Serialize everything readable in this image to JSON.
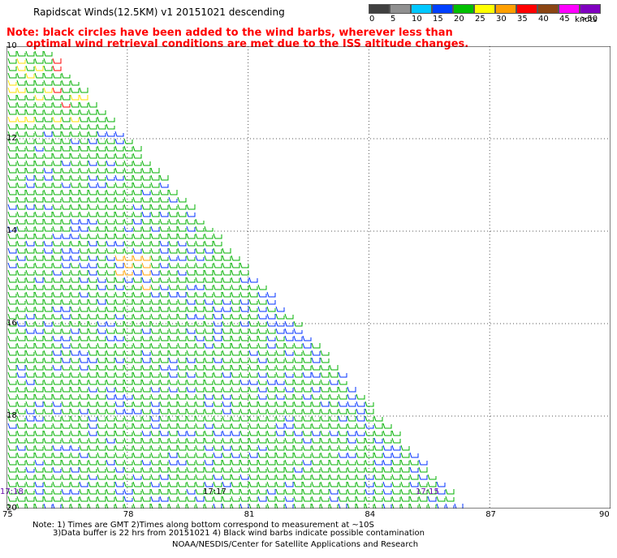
{
  "header": {
    "title": "Rapidscat Winds(12.5KM) v1 20151021 descending",
    "note_line1": "Note: black circles have been added to the wind barbs, wherever less than",
    "note_line2": "optimal wind retrieval conditions are met due to the ISS altitude changes."
  },
  "colorbar": {
    "colors": [
      "#404040",
      "#909090",
      "#00c8ff",
      "#0040ff",
      "#00c000",
      "#ffff00",
      "#ffa000",
      "#ff0000",
      "#8b4513",
      "#ff00ff",
      "#8000c0"
    ],
    "labels": [
      "0",
      "5",
      "10",
      "15",
      "20",
      "25",
      "30",
      "35",
      "40",
      "45",
      ">50"
    ],
    "unit": "knots"
  },
  "map": {
    "x_ticks": [
      "75",
      "78",
      "81",
      "84",
      "87",
      "90"
    ],
    "y_ticks": [
      "10",
      "12",
      "14",
      "16",
      "18",
      "20"
    ],
    "time_labels": [
      "17:18",
      "17:17",
      "17:15"
    ]
  },
  "footer": {
    "line1": "Note: 1) Times are GMT 2)Times along bottom correspond to measurement at ~10S",
    "line2": "3)Data buffer is 22 hrs from 20151021 4) Black wind barbs indicate possible contamination",
    "line3": "NOAA/NESDIS/Center for Satellite Applications and Research"
  }
}
